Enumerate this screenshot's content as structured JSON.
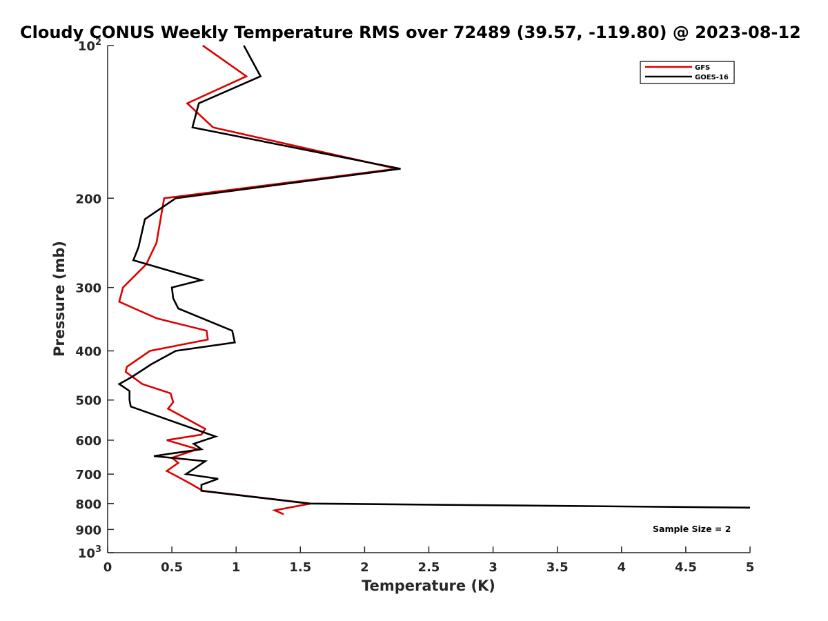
{
  "chart_data": {
    "type": "line",
    "title": "Cloudy CONUS Weekly Temperature RMS over 72489 (39.57, -119.80) @ 2023-08-12",
    "xlabel": "Temperature (K)",
    "ylabel": "Pressure (mb)",
    "xlim": [
      0,
      5
    ],
    "ylim": [
      100,
      1000
    ],
    "y_scale": "log",
    "y_reversed": true,
    "grid": false,
    "legend_position": "top-right",
    "x_ticks": [
      0,
      0.5,
      1,
      1.5,
      2,
      2.5,
      3,
      3.5,
      4,
      4.5,
      5
    ],
    "x_tick_labels": [
      "0",
      "0.5",
      "1",
      "1.5",
      "2",
      "2.5",
      "3",
      "3.5",
      "4",
      "4.5",
      "5"
    ],
    "y_ticks": [
      200,
      300,
      400,
      500,
      600,
      700,
      800,
      900
    ],
    "y_tick_labels": [
      "200",
      "300",
      "400",
      "500",
      "600",
      "700",
      "800",
      "900"
    ],
    "y_tick_bounds": [
      {
        "value": 100,
        "base": "10",
        "exp": "2"
      },
      {
        "value": 1000,
        "base": "10",
        "exp": "3"
      }
    ],
    "annotation": "Sample Size = 2",
    "series": [
      {
        "name": "GFS",
        "color": "#dd0000",
        "points": [
          [
            0.74,
            100
          ],
          [
            1.08,
            115
          ],
          [
            0.62,
            130
          ],
          [
            0.82,
            145
          ],
          [
            2.25,
            175
          ],
          [
            0.44,
            200
          ],
          [
            0.38,
            245
          ],
          [
            0.3,
            270
          ],
          [
            0.12,
            300
          ],
          [
            0.09,
            320
          ],
          [
            0.38,
            345
          ],
          [
            0.77,
            365
          ],
          [
            0.78,
            380
          ],
          [
            0.33,
            400
          ],
          [
            0.15,
            430
          ],
          [
            0.14,
            440
          ],
          [
            0.27,
            465
          ],
          [
            0.49,
            485
          ],
          [
            0.51,
            505
          ],
          [
            0.47,
            520
          ],
          [
            0.76,
            570
          ],
          [
            0.73,
            585
          ],
          [
            0.46,
            600
          ],
          [
            0.7,
            625
          ],
          [
            0.5,
            650
          ],
          [
            0.55,
            665
          ],
          [
            0.46,
            690
          ],
          [
            0.53,
            705
          ],
          [
            0.64,
            730
          ],
          [
            0.74,
            755
          ],
          [
            1.58,
            800
          ],
          [
            1.3,
            825
          ],
          [
            1.37,
            840
          ]
        ]
      },
      {
        "name": "GOES-16",
        "color": "#000000",
        "points": [
          [
            1.06,
            100
          ],
          [
            1.19,
            115
          ],
          [
            0.71,
            130
          ],
          [
            0.66,
            145
          ],
          [
            2.28,
            175
          ],
          [
            0.53,
            200
          ],
          [
            0.29,
            220
          ],
          [
            0.24,
            250
          ],
          [
            0.2,
            265
          ],
          [
            0.73,
            290
          ],
          [
            0.5,
            300
          ],
          [
            0.51,
            315
          ],
          [
            0.55,
            330
          ],
          [
            0.97,
            365
          ],
          [
            0.99,
            385
          ],
          [
            0.53,
            400
          ],
          [
            0.34,
            425
          ],
          [
            0.19,
            450
          ],
          [
            0.09,
            465
          ],
          [
            0.17,
            480
          ],
          [
            0.17,
            500
          ],
          [
            0.18,
            515
          ],
          [
            0.84,
            590
          ],
          [
            0.67,
            610
          ],
          [
            0.73,
            625
          ],
          [
            0.36,
            645
          ],
          [
            0.76,
            660
          ],
          [
            0.61,
            700
          ],
          [
            0.86,
            715
          ],
          [
            0.73,
            735
          ],
          [
            0.73,
            755
          ],
          [
            1.57,
            800
          ],
          [
            5.0,
            815
          ]
        ]
      }
    ]
  }
}
